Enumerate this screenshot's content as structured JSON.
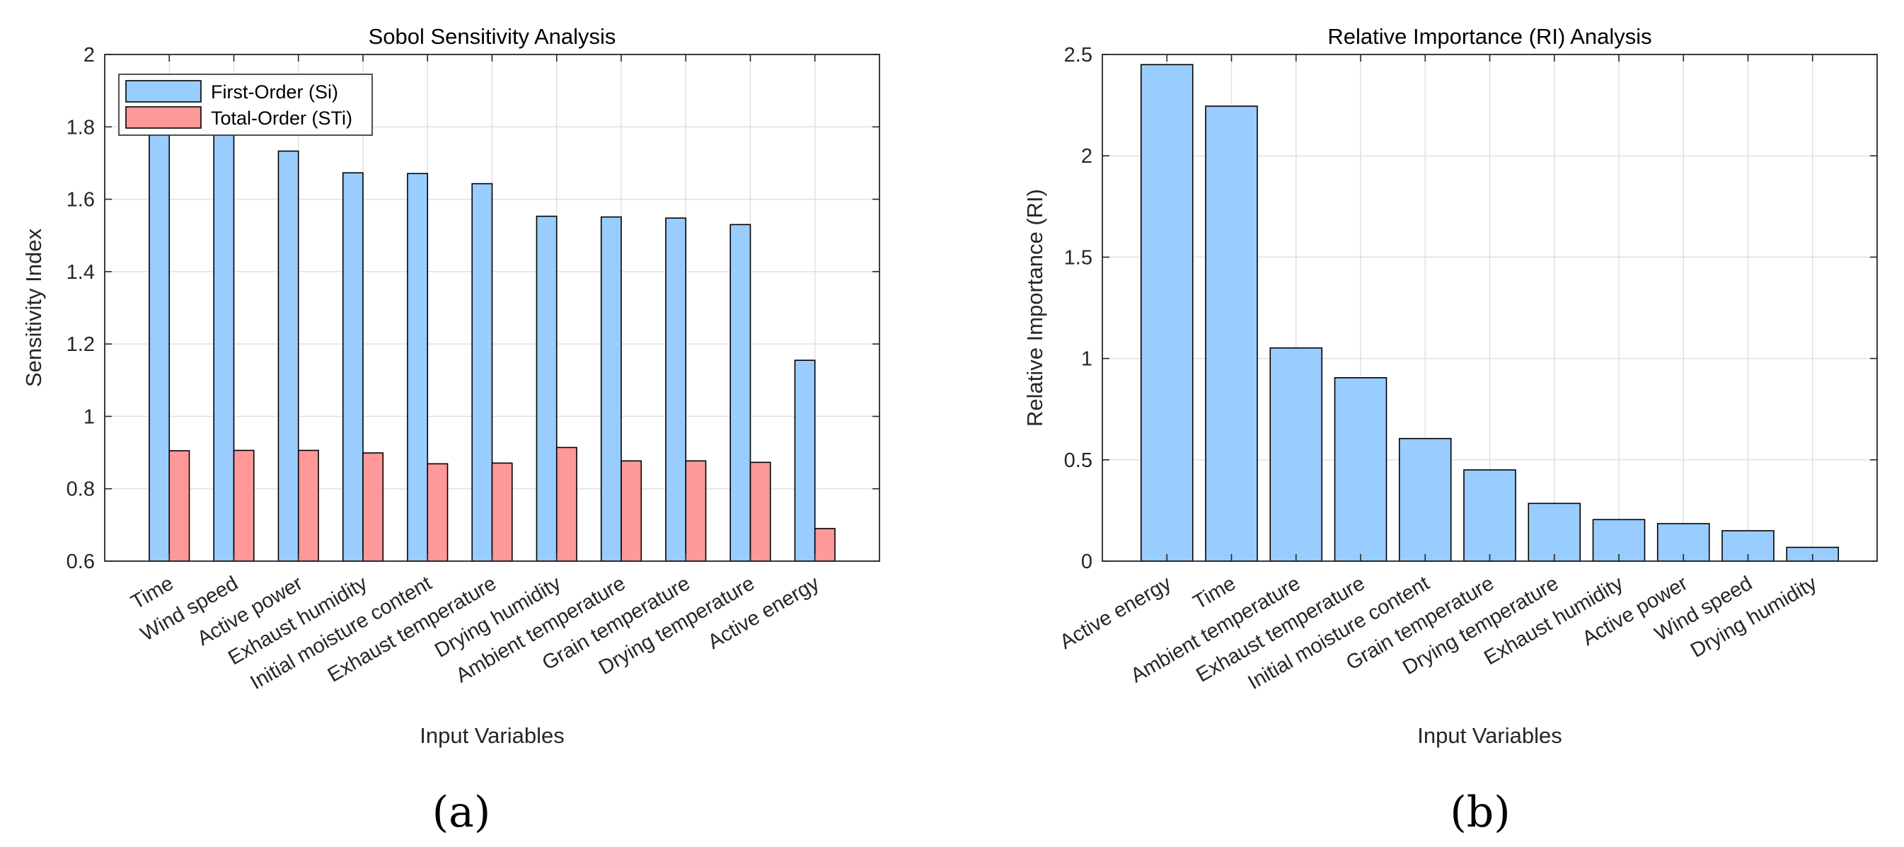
{
  "chart_data": [
    {
      "id": "panel-a",
      "type": "bar",
      "title": "Sobol Sensitivity Analysis",
      "xlabel": "Input Variables",
      "ylabel": "Sensitivity Index",
      "ylim": [
        0.6,
        2.0
      ],
      "yticks": [
        0.6,
        0.8,
        1,
        1.2,
        1.4,
        1.6,
        1.8,
        2
      ],
      "ytick_labels": [
        "0.6",
        "0.8",
        "1",
        "1.2",
        "1.4",
        "1.6",
        "1.8",
        "2"
      ],
      "grid": true,
      "legend_position": "top-left",
      "categories": [
        "Time",
        "Wind speed",
        "Active power",
        "Exhaust humidity",
        "Initial moisture content",
        "Exhaust temperature",
        "Drying humidity",
        "Ambient temperature",
        "Grain temperature",
        "Drying temperature",
        "Active energy"
      ],
      "series": [
        {
          "name": "First-Order (Si)",
          "color": "#99ccff",
          "values": [
            1.8,
            1.79,
            1.733,
            1.673,
            1.671,
            1.643,
            1.553,
            1.551,
            1.548,
            1.53,
            1.155
          ]
        },
        {
          "name": "Total-Order (STi)",
          "color": "#ff9999",
          "values": [
            0.905,
            0.906,
            0.906,
            0.899,
            0.869,
            0.871,
            0.914,
            0.877,
            0.877,
            0.873,
            0.69
          ]
        }
      ],
      "caption": "(a)"
    },
    {
      "id": "panel-b",
      "type": "bar",
      "title": "Relative Importance (RI) Analysis",
      "xlabel": "Input Variables",
      "ylabel": "Relative Importance (RI)",
      "ylim": [
        0,
        2.5
      ],
      "yticks": [
        0,
        0.5,
        1,
        1.5,
        2,
        2.5
      ],
      "ytick_labels": [
        "0",
        "0.5",
        "1",
        "1.5",
        "2",
        "2.5"
      ],
      "grid": true,
      "categories": [
        "Active energy",
        "Time",
        "Ambient temperature",
        "Exhaust temperature",
        "Initial moisture content",
        "Grain temperature",
        "Drying temperature",
        "Exhaust humidity",
        "Active power",
        "Wind speed",
        "Drying humidity"
      ],
      "series": [
        {
          "name": "Relative Importance (RI)",
          "color": "#99ccff",
          "values": [
            2.45,
            2.245,
            1.052,
            0.905,
            0.605,
            0.45,
            0.285,
            0.205,
            0.185,
            0.15,
            0.068
          ]
        }
      ],
      "caption": "(b)"
    }
  ]
}
